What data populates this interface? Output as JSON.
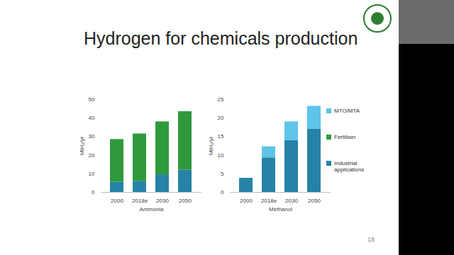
{
  "title": "Hydrogen for chemicals production",
  "page_number": "18",
  "chart_data": [
    {
      "type": "bar",
      "stacked": true,
      "xlabel": "Ammonia",
      "ylabel": "MtH₂/yr",
      "categories": [
        "2000",
        "2018e",
        "2030",
        "2050"
      ],
      "ylim": [
        0,
        50
      ],
      "yticks": [
        0,
        10,
        20,
        30,
        40,
        50
      ],
      "grid": false,
      "series": [
        {
          "name": "Industrial applications",
          "color": "#2483a6",
          "values": [
            5.5,
            6,
            9.5,
            12
          ]
        },
        {
          "name": "Fertiliser",
          "color": "#2f9a3c",
          "values": [
            23,
            25.5,
            28.5,
            31.5
          ]
        }
      ]
    },
    {
      "type": "bar",
      "stacked": true,
      "xlabel": "Methanol",
      "ylabel": "MtH₂/yr",
      "categories": [
        "2000",
        "2018e",
        "2030",
        "2050"
      ],
      "ylim": [
        0,
        25
      ],
      "yticks": [
        0,
        5,
        10,
        15,
        20,
        25
      ],
      "grid": false,
      "legend": "right",
      "series": [
        {
          "name": "Industrial applications",
          "color": "#2483a6",
          "values": [
            3.8,
            9.3,
            14,
            17
          ]
        },
        {
          "name": "MTO/MTA",
          "color": "#5ec4ea",
          "values": [
            0,
            3,
            5,
            6.2
          ]
        }
      ]
    }
  ]
}
